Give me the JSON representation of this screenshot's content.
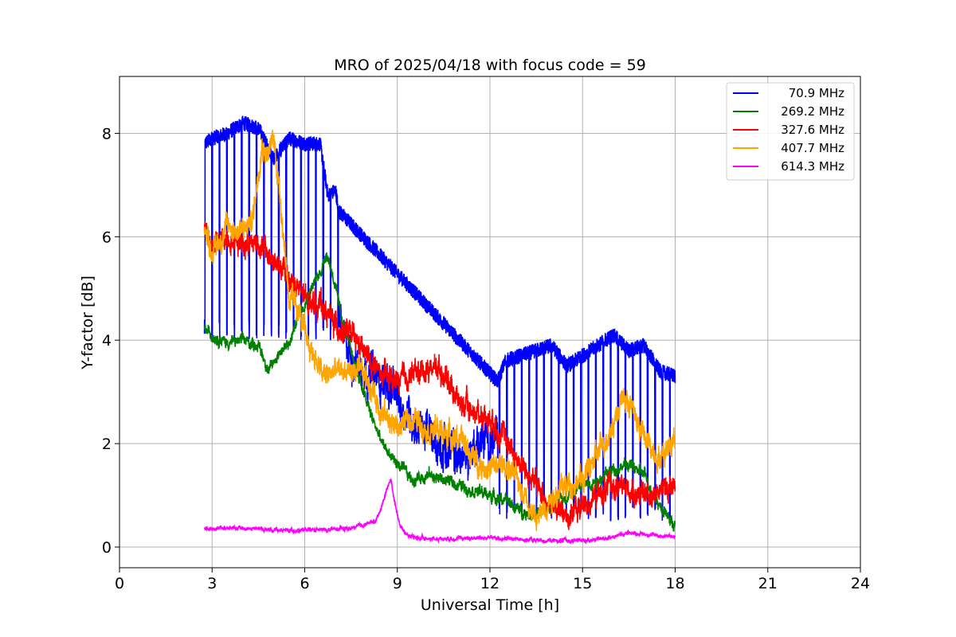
{
  "chart_data": {
    "type": "line",
    "title": "MRO of 2025/04/18 with focus code = 59",
    "xlabel": "Universal Time [h]",
    "ylabel": "Y-factor [dB]",
    "xlim": [
      0,
      24
    ],
    "ylim": [
      -0.4,
      9.1
    ],
    "xticks": [
      0,
      3,
      6,
      9,
      12,
      15,
      18,
      21,
      24
    ],
    "yticks": [
      0,
      2,
      4,
      6,
      8
    ],
    "grid": true,
    "legend_position": "top-right",
    "series": [
      {
        "name": "70.9 MHz",
        "color": "#0000ff",
        "base": {
          "x": [
            2.75,
            3.0,
            3.5,
            4.0,
            4.5,
            5.0,
            5.5,
            6.0,
            6.5,
            6.75,
            7.0,
            7.1,
            12.25,
            12.5,
            13.0,
            13.5,
            14.0,
            14.5,
            15.0,
            15.5,
            16.0,
            16.5,
            17.0,
            17.5,
            18.0
          ],
          "y": [
            7.8,
            7.9,
            8.0,
            8.2,
            8.1,
            7.5,
            7.9,
            7.8,
            7.8,
            6.8,
            6.9,
            6.5,
            3.2,
            3.6,
            3.7,
            3.8,
            3.9,
            3.5,
            3.7,
            3.9,
            4.1,
            3.8,
            3.9,
            3.4,
            3.3
          ],
          "dropouts": [
            {
              "start": 2.75,
              "end": 7.1,
              "period": 0.24,
              "low": 4.0
            },
            {
              "start": 12.3,
              "end": 18.0,
              "period": 0.24,
              "low": 0.5
            }
          ]
        },
        "x": [
          7.1,
          7.3,
          7.6,
          8.0,
          8.3,
          8.6,
          9.0,
          9.3,
          9.6,
          10.0,
          10.3,
          10.6,
          11.0,
          11.3,
          11.6,
          12.0,
          12.25
        ],
        "y": [
          4.6,
          3.9,
          3.6,
          3.4,
          3.3,
          3.2,
          2.8,
          2.6,
          2.4,
          2.2,
          2.0,
          1.9,
          1.7,
          1.8,
          2.0,
          2.1,
          2.0
        ],
        "noise": 0.5
      },
      {
        "name": "269.2 MHz",
        "color": "#008000",
        "x": [
          2.75,
          3.0,
          3.5,
          4.0,
          4.5,
          4.85,
          5.2,
          5.5,
          5.8,
          6.2,
          6.5,
          6.7,
          6.9,
          7.2,
          7.6,
          8.0,
          8.5,
          9.0,
          9.5,
          10.0,
          10.5,
          11.0,
          11.5,
          12.0,
          12.5,
          13.0,
          13.5,
          14.0,
          14.5,
          15.0,
          15.5,
          16.0,
          16.5,
          17.0,
          17.5,
          18.0
        ],
        "y": [
          4.2,
          4.1,
          3.95,
          4.0,
          3.9,
          3.4,
          3.8,
          3.9,
          4.5,
          5.0,
          5.3,
          5.7,
          5.3,
          4.4,
          3.6,
          2.8,
          2.0,
          1.6,
          1.3,
          1.4,
          1.3,
          1.2,
          1.1,
          1.0,
          0.9,
          0.7,
          0.6,
          0.8,
          1.0,
          1.2,
          1.3,
          1.5,
          1.6,
          1.4,
          0.8,
          0.4
        ],
        "noise": 0.15
      },
      {
        "name": "327.6 MHz",
        "color": "#ff0000",
        "x": [
          2.75,
          3.0,
          3.5,
          4.0,
          4.5,
          5.0,
          5.5,
          6.0,
          6.5,
          7.0,
          7.5,
          8.0,
          8.5,
          9.0,
          9.5,
          10.0,
          10.3,
          10.7,
          11.0,
          11.5,
          12.0,
          12.5,
          13.0,
          13.5,
          14.0,
          14.5,
          15.0,
          15.5,
          16.0,
          16.5,
          17.0,
          17.5,
          18.0
        ],
        "y": [
          6.2,
          5.8,
          6.0,
          5.9,
          5.9,
          5.5,
          5.2,
          4.8,
          4.7,
          4.3,
          4.1,
          3.7,
          3.3,
          3.2,
          3.35,
          3.45,
          3.5,
          3.2,
          2.8,
          2.6,
          2.5,
          2.1,
          1.6,
          1.2,
          0.8,
          0.6,
          0.8,
          1.0,
          1.2,
          1.1,
          1.0,
          1.1,
          1.2
        ],
        "noise": 0.3
      },
      {
        "name": "407.7 MHz",
        "color": "#ffa500",
        "x": [
          2.75,
          3.0,
          3.5,
          4.0,
          4.3,
          4.6,
          4.8,
          5.0,
          5.2,
          5.5,
          5.8,
          6.0,
          6.3,
          6.6,
          7.0,
          7.5,
          8.0,
          8.5,
          9.0,
          9.5,
          10.0,
          10.5,
          11.0,
          11.5,
          12.0,
          12.5,
          13.0,
          13.5,
          14.0,
          14.5,
          15.0,
          15.5,
          16.0,
          16.3,
          16.6,
          17.0,
          17.5,
          18.0
        ],
        "y": [
          6.2,
          5.7,
          6.2,
          6.1,
          6.3,
          7.8,
          7.6,
          7.9,
          6.8,
          4.8,
          4.6,
          4.1,
          3.7,
          3.3,
          3.4,
          3.4,
          3.3,
          2.6,
          2.3,
          2.5,
          2.3,
          2.2,
          2.1,
          1.7,
          1.5,
          1.6,
          1.2,
          0.5,
          1.0,
          1.2,
          1.3,
          1.8,
          2.4,
          2.9,
          2.7,
          2.1,
          1.7,
          2.2
        ],
        "noise": 0.3
      },
      {
        "name": "614.3 MHz",
        "color": "#ff00ff",
        "x": [
          2.75,
          3.5,
          4.5,
          5.5,
          6.5,
          7.5,
          8.0,
          8.3,
          8.5,
          8.7,
          8.8,
          8.9,
          9.1,
          9.3,
          9.6,
          10.0,
          11.0,
          12.0,
          13.0,
          14.0,
          15.0,
          15.5,
          16.0,
          16.5,
          17.0,
          17.5,
          18.0
        ],
        "y": [
          0.35,
          0.37,
          0.35,
          0.32,
          0.33,
          0.36,
          0.45,
          0.5,
          0.8,
          1.2,
          1.3,
          0.9,
          0.4,
          0.25,
          0.18,
          0.16,
          0.17,
          0.18,
          0.15,
          0.12,
          0.13,
          0.15,
          0.2,
          0.28,
          0.25,
          0.22,
          0.2
        ],
        "noise": 0.05
      }
    ]
  }
}
